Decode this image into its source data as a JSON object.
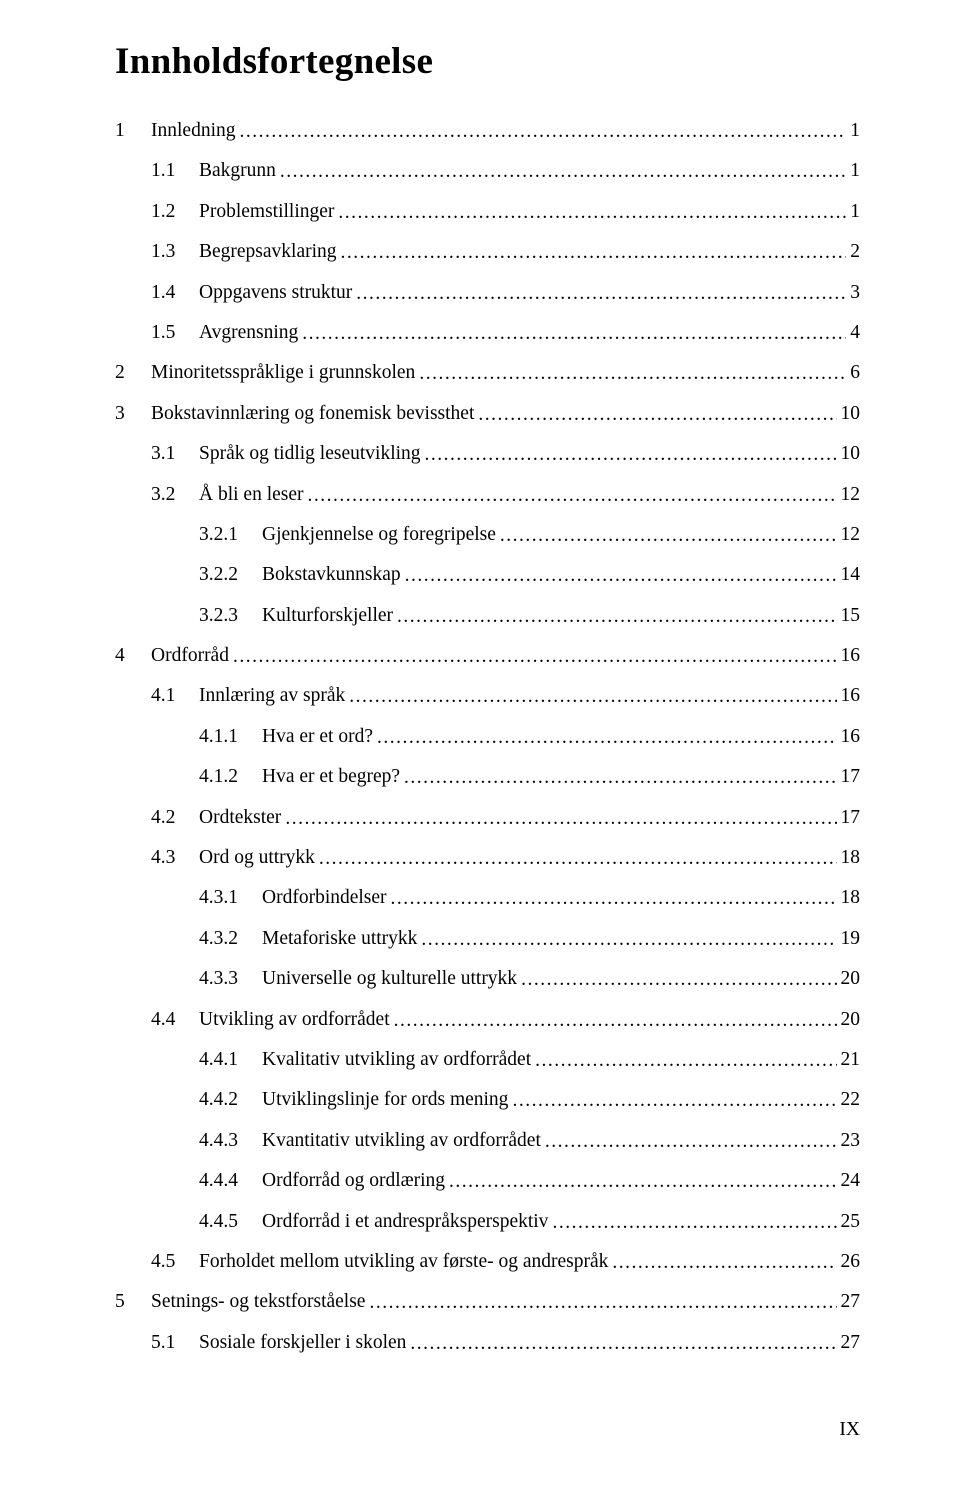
{
  "title": "Innholdsfortegnelse",
  "footer": "IX",
  "entries": [
    {
      "num": "1",
      "title": "Innledning",
      "page": "1",
      "level": 0
    },
    {
      "num": "1.1",
      "title": "Bakgrunn",
      "page": "1",
      "level": 1
    },
    {
      "num": "1.2",
      "title": "Problemstillinger",
      "page": "1",
      "level": 1
    },
    {
      "num": "1.3",
      "title": "Begrepsavklaring",
      "page": "2",
      "level": 1
    },
    {
      "num": "1.4",
      "title": "Oppgavens struktur",
      "page": "3",
      "level": 1
    },
    {
      "num": "1.5",
      "title": "Avgrensning",
      "page": "4",
      "level": 1
    },
    {
      "num": "2",
      "title": "Minoritetsspråklige i grunnskolen",
      "page": "6",
      "level": 0
    },
    {
      "num": "3",
      "title": "Bokstavinnlæring og fonemisk bevissthet",
      "page": "10",
      "level": 0
    },
    {
      "num": "3.1",
      "title": "Språk og tidlig leseutvikling",
      "page": "10",
      "level": 1
    },
    {
      "num": "3.2",
      "title": "Å bli en leser",
      "page": "12",
      "level": 1
    },
    {
      "num": "3.2.1",
      "title": "Gjenkjennelse og foregripelse",
      "page": "12",
      "level": 2
    },
    {
      "num": "3.2.2",
      "title": "Bokstavkunnskap",
      "page": "14",
      "level": 2
    },
    {
      "num": "3.2.3",
      "title": "Kulturforskjeller",
      "page": "15",
      "level": 2
    },
    {
      "num": "4",
      "title": "Ordforråd",
      "page": "16",
      "level": 0
    },
    {
      "num": "4.1",
      "title": "Innlæring av språk",
      "page": "16",
      "level": 1
    },
    {
      "num": "4.1.1",
      "title": "Hva er et ord?",
      "page": "16",
      "level": 2
    },
    {
      "num": "4.1.2",
      "title": "Hva er et begrep? ",
      "page": "17",
      "level": 2
    },
    {
      "num": "4.2",
      "title": "Ordtekster",
      "page": "17",
      "level": 1
    },
    {
      "num": "4.3",
      "title": "Ord og uttrykk",
      "page": "18",
      "level": 1
    },
    {
      "num": "4.3.1",
      "title": "Ordforbindelser",
      "page": "18",
      "level": 2
    },
    {
      "num": "4.3.2",
      "title": "Metaforiske uttrykk",
      "page": "19",
      "level": 2
    },
    {
      "num": "4.3.3",
      "title": "Universelle og kulturelle uttrykk",
      "page": "20",
      "level": 2
    },
    {
      "num": "4.4",
      "title": "Utvikling av ordforrådet",
      "page": "20",
      "level": 1
    },
    {
      "num": "4.4.1",
      "title": "Kvalitativ utvikling av ordforrådet",
      "page": "21",
      "level": 2
    },
    {
      "num": "4.4.2",
      "title": "Utviklingslinje for ords mening",
      "page": "22",
      "level": 2
    },
    {
      "num": "4.4.3",
      "title": "Kvantitativ utvikling av ordforrådet",
      "page": "23",
      "level": 2
    },
    {
      "num": "4.4.4",
      "title": "Ordforråd og ordlæring",
      "page": "24",
      "level": 2
    },
    {
      "num": "4.4.5",
      "title": "Ordforråd i et andrespråksperspektiv",
      "page": "25",
      "level": 2
    },
    {
      "num": "4.5",
      "title": "Forholdet mellom utvikling av første- og andrespråk",
      "page": "26",
      "level": 1
    },
    {
      "num": "5",
      "title": "Setnings- og tekstforståelse",
      "page": "27",
      "level": 0
    },
    {
      "num": "5.1",
      "title": "Sosiale forskjeller i skolen",
      "page": "27",
      "level": 1
    }
  ]
}
